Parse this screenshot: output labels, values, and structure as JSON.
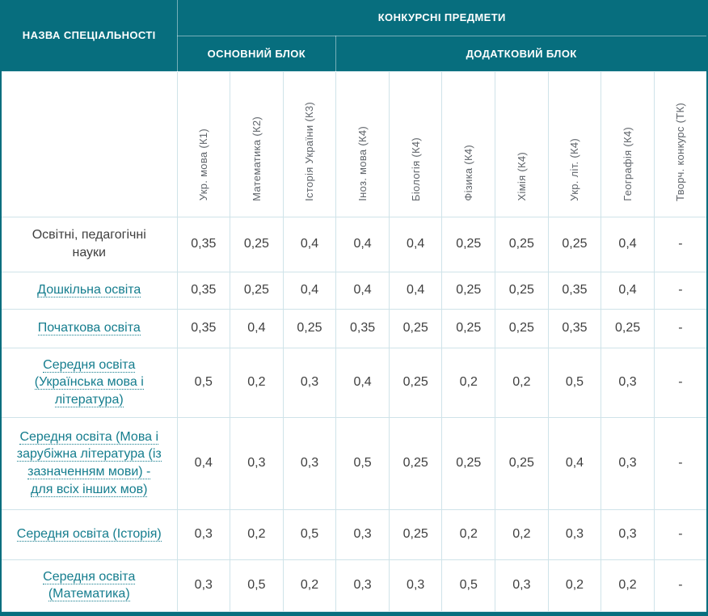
{
  "table": {
    "header": {
      "specialty_col": "НАЗВА СПЕЦІАЛЬНОСТІ",
      "group_title": "КОНКУРСНІ ПРЕДМЕТИ",
      "main_block": "ОСНОВНИЙ БЛОК",
      "additional_block": "ДОДАТКОВИЙ БЛОК",
      "subjects": [
        "Укр. мова (К1)",
        "Математика (К2)",
        "Історія України (К3)",
        "Іноз. мова (К4)",
        "Біологія (К4)",
        "Фізика (К4)",
        "Хімія (К4)",
        "Укр. літ. (К4)",
        "Географія (К4)",
        "Творч. конкурс (ТК)"
      ]
    },
    "rows": [
      {
        "name": "Освітні, педагогічні науки",
        "link": false,
        "values": [
          "0,35",
          "0,25",
          "0,4",
          "0,4",
          "0,4",
          "0,25",
          "0,25",
          "0,25",
          "0,4",
          "-"
        ]
      },
      {
        "name": "Дошкільна освіта",
        "link": true,
        "values": [
          "0,35",
          "0,25",
          "0,4",
          "0,4",
          "0,4",
          "0,25",
          "0,25",
          "0,35",
          "0,4",
          "-"
        ]
      },
      {
        "name": "Початкова освіта",
        "link": true,
        "values": [
          "0,35",
          "0,4",
          "0,25",
          "0,35",
          "0,25",
          "0,25",
          "0,25",
          "0,35",
          "0,25",
          "-"
        ]
      },
      {
        "name": "Середня освіта (Українська мова і література)",
        "link": true,
        "values": [
          "0,5",
          "0,2",
          "0,3",
          "0,4",
          "0,25",
          "0,2",
          "0,2",
          "0,5",
          "0,3",
          "-"
        ]
      },
      {
        "name": "Середня освіта (Мова і зарубіжна література (із зазначенням мови) - для всіх інших мов)",
        "link": true,
        "values": [
          "0,4",
          "0,3",
          "0,3",
          "0,5",
          "0,25",
          "0,25",
          "0,25",
          "0,4",
          "0,3",
          "-"
        ]
      },
      {
        "name": "Середня освіта (Історія)",
        "link": true,
        "values": [
          "0,3",
          "0,2",
          "0,5",
          "0,3",
          "0,25",
          "0,2",
          "0,2",
          "0,3",
          "0,3",
          "-"
        ]
      },
      {
        "name": "Середня освіта (Математика)",
        "link": true,
        "values": [
          "0,3",
          "0,5",
          "0,2",
          "0,3",
          "0,3",
          "0,5",
          "0,3",
          "0,2",
          "0,2",
          "-"
        ]
      }
    ],
    "colors": {
      "header_bg": "#076e7e",
      "link": "#157d8e",
      "grid": "#cfe3e9",
      "text": "#3f3f3f",
      "subject_text": "#5f646a"
    }
  }
}
